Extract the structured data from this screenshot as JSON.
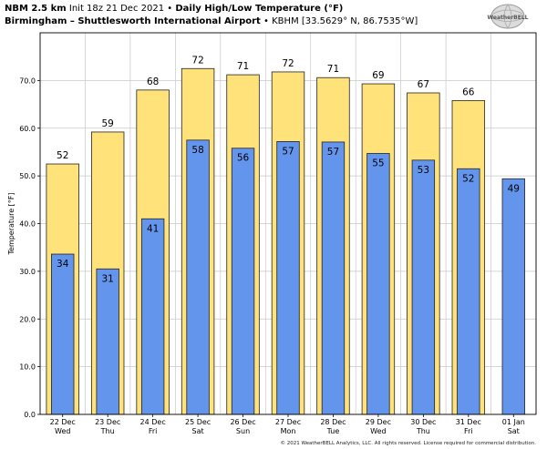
{
  "header": {
    "model": "NBM 2.5 km",
    "init": "Init 18z 21 Dec 2021",
    "bullet": "•",
    "title": "Daily High/Low Temperature (°F)",
    "station_name": "Birmingham – Shuttlesworth International Airport",
    "station_meta": "KBHM [33.5629° N, 86.7535°W]"
  },
  "logo": {
    "text": "WeatherBELL",
    "icon": "globe-logo-icon"
  },
  "footer": {
    "copyright": "© 2021 WeatherBELL Analytics, LLC. All rights reserved. License required for commercial distribution."
  },
  "colors": {
    "high": "#FFE27A",
    "low": "#6495ED",
    "grid": "#C8C8C8",
    "plot_bg": "#FFFFFF",
    "outline": "#222222"
  },
  "chart_data": {
    "type": "bar",
    "title": "Daily High/Low Temperature (°F)",
    "xlabel": "",
    "ylabel": "Temperature [°F]",
    "ylim": [
      0,
      80
    ],
    "yticks": [
      "0.0",
      "10.0",
      "20.0",
      "30.0",
      "40.0",
      "50.0",
      "60.0",
      "70.0"
    ],
    "grid": true,
    "categories": [
      {
        "date": "22 Dec",
        "day": "Wed"
      },
      {
        "date": "23 Dec",
        "day": "Thu"
      },
      {
        "date": "24 Dec",
        "day": "Fri"
      },
      {
        "date": "25 Dec",
        "day": "Sat"
      },
      {
        "date": "26 Dec",
        "day": "Sun"
      },
      {
        "date": "27 Dec",
        "day": "Mon"
      },
      {
        "date": "28 Dec",
        "day": "Tue"
      },
      {
        "date": "29 Dec",
        "day": "Wed"
      },
      {
        "date": "30 Dec",
        "day": "Thu"
      },
      {
        "date": "31 Dec",
        "day": "Fri"
      },
      {
        "date": "01 Jan",
        "day": "Sat"
      }
    ],
    "series": [
      {
        "name": "",
        "values": [
          52.5,
          59.2,
          68.0,
          72.5,
          71.2,
          71.8,
          70.6,
          69.3,
          67.4,
          65.8,
          null
        ],
        "labels": [
          "52",
          "59",
          "68",
          "72",
          "71",
          "72",
          "71",
          "69",
          "67",
          "66",
          ""
        ]
      },
      {
        "name": "",
        "values": [
          33.6,
          30.5,
          41.0,
          57.5,
          55.8,
          57.2,
          57.1,
          54.7,
          53.3,
          51.5,
          49.4
        ],
        "labels": [
          "34",
          "31",
          "41",
          "58",
          "56",
          "57",
          "57",
          "55",
          "53",
          "52",
          "49"
        ]
      }
    ]
  }
}
